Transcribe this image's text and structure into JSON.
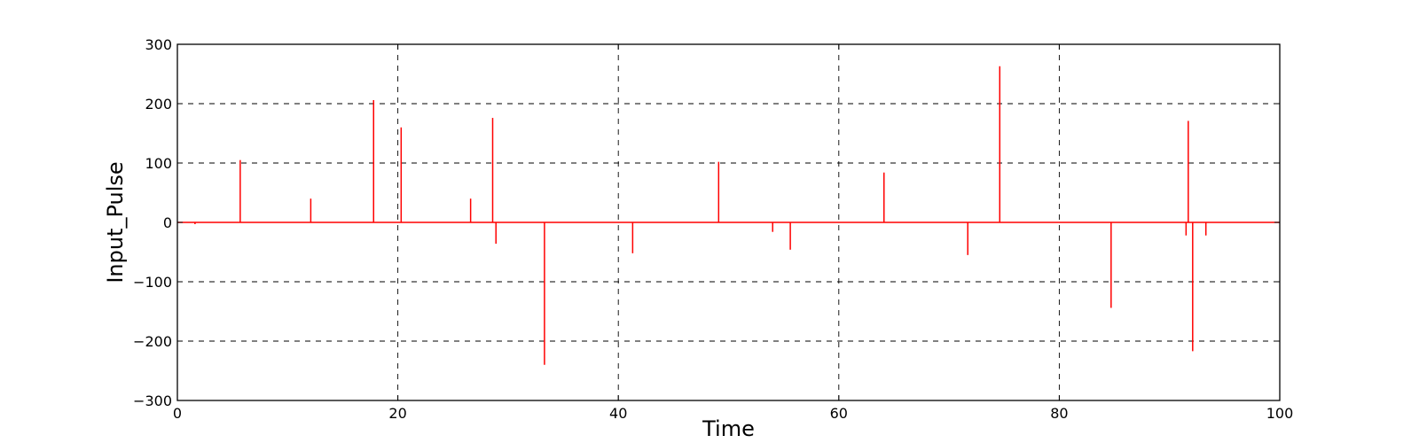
{
  "chart_data": {
    "type": "line",
    "title": "",
    "xlabel": "Time",
    "ylabel": "Input_Pulse",
    "xlim": [
      0,
      100
    ],
    "ylim": [
      -300,
      300
    ],
    "x_ticks": [
      0,
      20,
      40,
      60,
      80,
      100
    ],
    "y_ticks": [
      -300,
      -200,
      -100,
      0,
      100,
      200,
      300
    ],
    "x_tick_labels": [
      "0",
      "20",
      "40",
      "60",
      "80",
      "100"
    ],
    "y_tick_labels": [
      "−300",
      "−200",
      "−100",
      "0",
      "100",
      "200",
      "300"
    ],
    "grid": true,
    "grid_style": "dashed",
    "series": [
      {
        "color": "#ff0000",
        "points": [
          {
            "x": 1.6,
            "y": -3
          },
          {
            "x": 5.7,
            "y": 105
          },
          {
            "x": 12.1,
            "y": 40
          },
          {
            "x": 17.8,
            "y": 206
          },
          {
            "x": 20.3,
            "y": 160
          },
          {
            "x": 26.6,
            "y": 40
          },
          {
            "x": 28.6,
            "y": 176
          },
          {
            "x": 28.9,
            "y": -36
          },
          {
            "x": 33.3,
            "y": -240
          },
          {
            "x": 41.3,
            "y": -52
          },
          {
            "x": 49.1,
            "y": 102
          },
          {
            "x": 54.0,
            "y": -16
          },
          {
            "x": 55.6,
            "y": -46
          },
          {
            "x": 64.1,
            "y": 84
          },
          {
            "x": 71.7,
            "y": -55
          },
          {
            "x": 74.6,
            "y": 263
          },
          {
            "x": 84.7,
            "y": -144
          },
          {
            "x": 91.5,
            "y": -22
          },
          {
            "x": 91.7,
            "y": 171
          },
          {
            "x": 92.1,
            "y": -217
          },
          {
            "x": 93.3,
            "y": -22
          }
        ]
      }
    ]
  }
}
